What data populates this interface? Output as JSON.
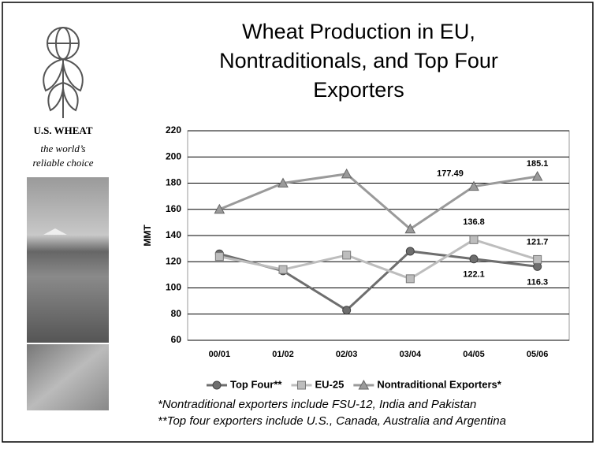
{
  "sidebar": {
    "brand": "U.S. WHEAT",
    "tagline_1": "the world’s",
    "tagline_2": "reliable choice"
  },
  "chart_data": {
    "type": "line",
    "title_lines": [
      "Wheat Production in EU,",
      "Nontraditionals, and Top Four",
      "Exporters"
    ],
    "y_label": "MMT",
    "categories": [
      "00/01",
      "01/02",
      "02/03",
      "03/04",
      "04/05",
      "05/06"
    ],
    "ylim": [
      60,
      220
    ],
    "yticks": [
      60,
      80,
      100,
      120,
      140,
      160,
      180,
      200,
      220
    ],
    "grid": true,
    "series": [
      {
        "name": "Top Four**",
        "color": "#6e6e6e",
        "marker": "circle",
        "values": [
          126,
          113,
          83,
          128,
          122.1,
          116.3
        ],
        "value_labels": [
          null,
          null,
          null,
          null,
          "122.1",
          "116.3"
        ]
      },
      {
        "name": "EU-25",
        "color": "#bdbdbd",
        "marker": "square",
        "values": [
          124,
          114,
          125,
          107,
          136.8,
          121.7
        ],
        "value_labels": [
          null,
          null,
          null,
          null,
          "136.8",
          "121.7"
        ]
      },
      {
        "name": "Nontraditional Exporters*",
        "color": "#9a9a9a",
        "marker": "triangle",
        "values": [
          160,
          180,
          187,
          145,
          177.49,
          185.1
        ],
        "value_labels": [
          null,
          null,
          null,
          null,
          "177.49",
          "185.1"
        ]
      }
    ],
    "footnotes": [
      "*Nontraditional exporters include FSU-12, India and Pakistan",
      "**Top four exporters include U.S., Canada, Australia and Argentina"
    ]
  }
}
